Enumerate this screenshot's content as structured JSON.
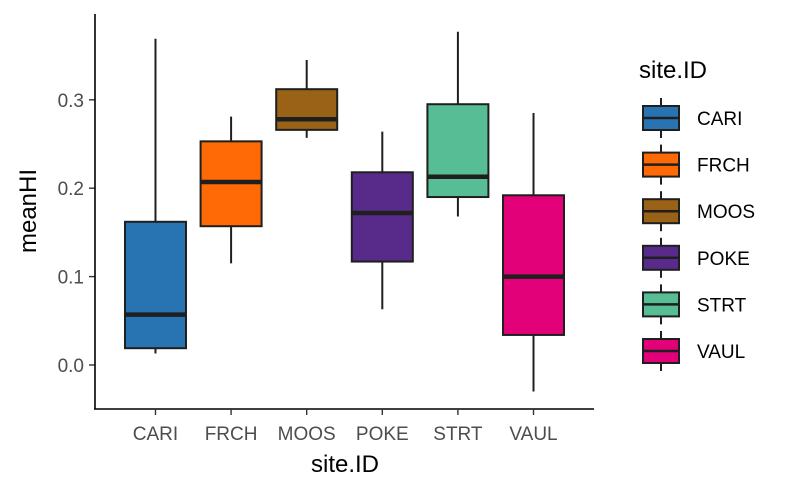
{
  "chart_data": {
    "type": "box",
    "title": "",
    "xlabel": "site.ID",
    "ylabel": "meanHI",
    "ylim": [
      -0.05,
      0.385
    ],
    "yticks": [
      0.0,
      0.1,
      0.2,
      0.3
    ],
    "ytick_labels": [
      "0.0",
      "0.1",
      "0.2",
      "0.3"
    ],
    "grid": false,
    "legend": {
      "title": "site.ID",
      "position": "right"
    },
    "categories": [
      "CARI",
      "FRCH",
      "MOOS",
      "POKE",
      "STRT",
      "VAUL"
    ],
    "boxes": [
      {
        "category": "CARI",
        "min": 0.013,
        "q1": 0.019,
        "median": 0.057,
        "q3": 0.162,
        "max": 0.369,
        "color": "#2874b2"
      },
      {
        "category": "FRCH",
        "min": 0.115,
        "q1": 0.157,
        "median": 0.207,
        "q3": 0.253,
        "max": 0.281,
        "color": "#ff6a07"
      },
      {
        "category": "MOOS",
        "min": 0.257,
        "q1": 0.266,
        "median": 0.278,
        "q3": 0.312,
        "max": 0.345,
        "color": "#996216"
      },
      {
        "category": "POKE",
        "min": 0.063,
        "q1": 0.117,
        "median": 0.172,
        "q3": 0.218,
        "max": 0.264,
        "color": "#582a8a"
      },
      {
        "category": "STRT",
        "min": 0.168,
        "q1": 0.19,
        "median": 0.213,
        "q3": 0.295,
        "max": 0.377,
        "color": "#56bd94"
      },
      {
        "category": "VAUL",
        "min": -0.03,
        "q1": 0.034,
        "median": 0.1,
        "q3": 0.192,
        "max": 0.285,
        "color": "#e3017a"
      }
    ]
  }
}
